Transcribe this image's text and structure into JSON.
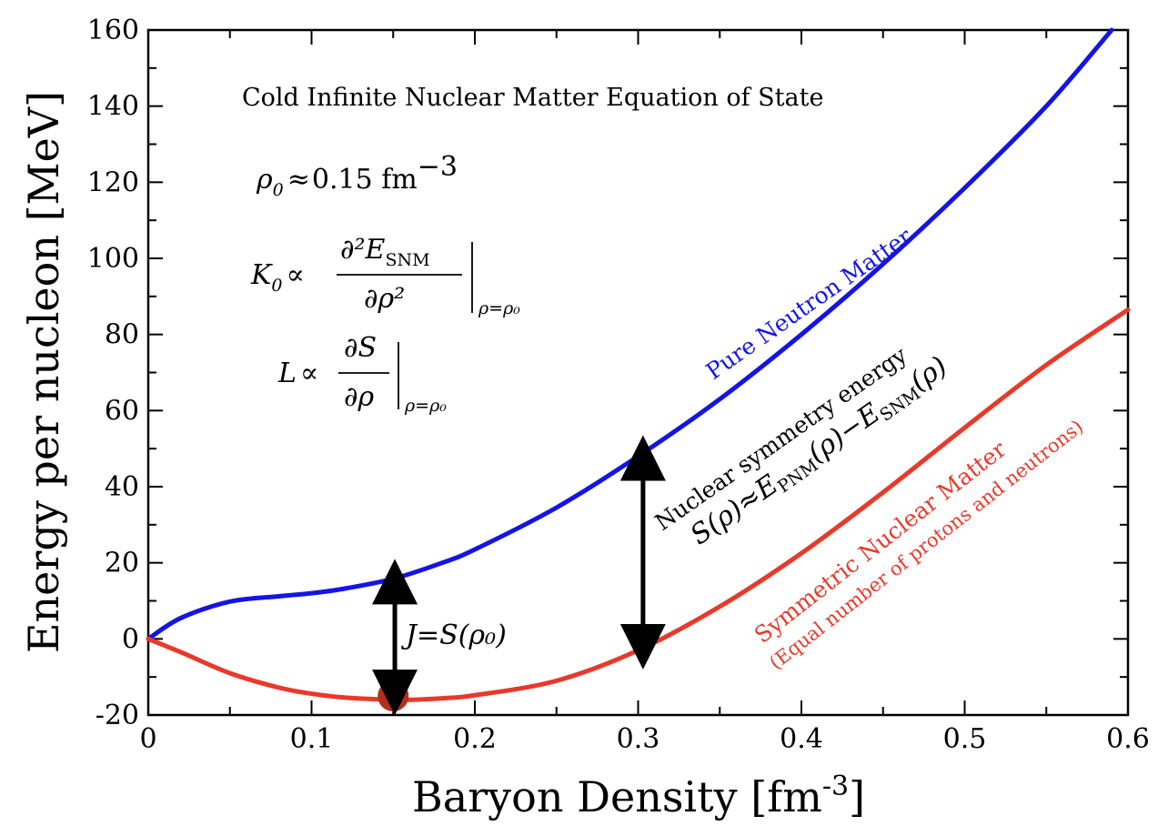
{
  "chart_data": {
    "type": "line",
    "title": "Cold Infinite Nuclear Matter Equation of State",
    "xlabel": "Baryon Density [fm",
    "xlabel_sup": "-3",
    "xlabel_close": "]",
    "ylabel": "Energy per nucleon [MeV]",
    "xlim": [
      0,
      0.6
    ],
    "ylim": [
      -20,
      160
    ],
    "xticks": [
      0,
      0.1,
      0.2,
      0.3,
      0.4,
      0.5,
      0.6
    ],
    "xtick_labels": [
      "0",
      "0.1",
      "0.2",
      "0.3",
      "0.4",
      "0.5",
      "0.6"
    ],
    "yticks": [
      -20,
      0,
      20,
      40,
      60,
      80,
      100,
      120,
      140,
      160
    ],
    "ytick_labels": [
      "-20",
      "0",
      "20",
      "40",
      "60",
      "80",
      "100",
      "120",
      "140",
      "160"
    ],
    "series": [
      {
        "name": "Pure Neutron Matter",
        "color": "#1414e6",
        "x": [
          0,
          0.02,
          0.05,
          0.08,
          0.1,
          0.12,
          0.15,
          0.18,
          0.2,
          0.25,
          0.3,
          0.35,
          0.4,
          0.45,
          0.5,
          0.55,
          0.59
        ],
        "y": [
          0,
          5.5,
          9.8,
          11.2,
          12.0,
          13.2,
          15.8,
          20.0,
          23.5,
          34.5,
          48.0,
          63.0,
          80.0,
          98.5,
          118.5,
          140.0,
          160.0
        ]
      },
      {
        "name": "Symmetric Nuclear Matter",
        "color": "#e8392a",
        "x": [
          0,
          0.02,
          0.05,
          0.08,
          0.1,
          0.12,
          0.15,
          0.16,
          0.18,
          0.2,
          0.25,
          0.3,
          0.35,
          0.4,
          0.45,
          0.5,
          0.55,
          0.6
        ],
        "y": [
          0,
          -3.5,
          -9.0,
          -12.8,
          -14.4,
          -15.4,
          -16.0,
          -16.0,
          -15.6,
          -14.8,
          -11.0,
          -3.0,
          8.5,
          22.5,
          38.5,
          55.5,
          72.0,
          86.5
        ]
      }
    ],
    "annotations": {
      "saturation_point": {
        "x": 0.15,
        "y": -15.0,
        "color": "#b03020"
      },
      "j_arrow": {
        "x": 0.151,
        "y_top": 16.0,
        "y_bottom": -15.0
      },
      "s_arrow": {
        "x": 0.303,
        "y_top": 48.5,
        "y_bottom": -3.0
      }
    },
    "text_labels": {
      "rho0": {
        "lhs": "ρ",
        "sub": "0",
        "rel": "≈",
        "value": "0.15 fm",
        "sup": "−3"
      },
      "k0": {
        "lhs": "K",
        "sub": "0",
        "rel": "∝",
        "num": "∂²E",
        "num_sub": "SNM",
        "den": "∂ρ²",
        "eval_sub": "ρ=ρ₀"
      },
      "l": {
        "lhs": "L",
        "rel": "∝",
        "num": "∂S",
        "den": "∂ρ",
        "eval_sub": "ρ=ρ₀"
      },
      "j": "J=S(ρ₀)",
      "pnm_label": "Pure Neutron Matter",
      "sym_energy_title": "Nuclear symmetry energy",
      "sym_energy_formula": "S(ρ)≈E",
      "sym_energy_sub1": "PNM",
      "sym_energy_mid": "(ρ)−E",
      "sym_energy_sub2": "SNM",
      "sym_energy_end": "(ρ)",
      "snm_label": "Symmetric Nuclear Matter",
      "snm_sublabel": "(Equal number of protons and neutrons)"
    }
  }
}
